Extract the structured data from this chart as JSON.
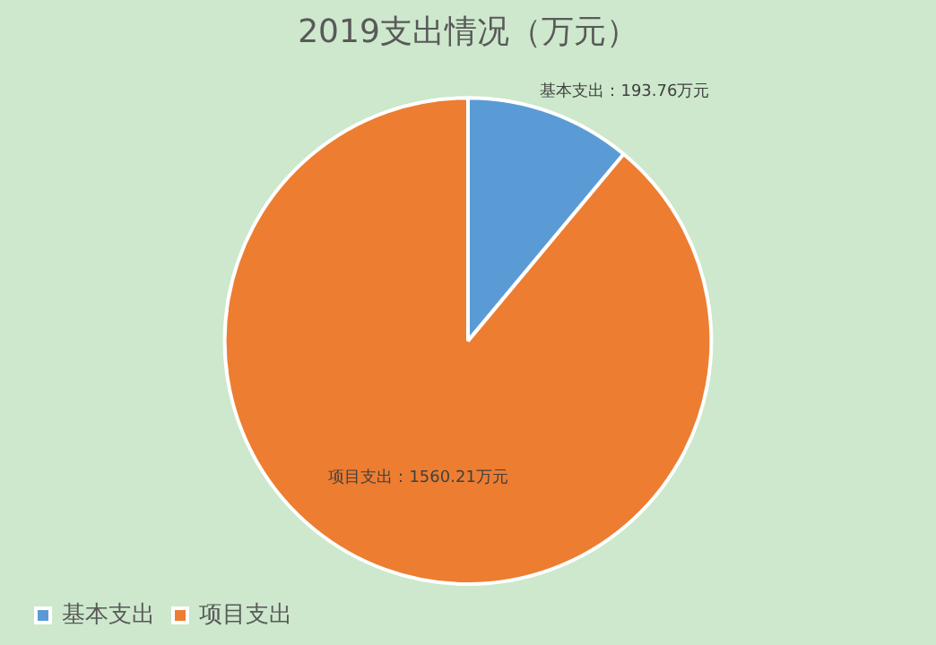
{
  "chart_data": {
    "type": "pie",
    "title": "2019支出情况（万元）",
    "categories": [
      "基本支出",
      "项目支出"
    ],
    "values": [
      193.76,
      1560.21
    ],
    "colors": [
      "#5b9bd5",
      "#ed7d31"
    ],
    "value_labels": [
      "基本支出：193.76万元",
      "项目支出：1560.21万元"
    ],
    "legend": "bottom"
  }
}
